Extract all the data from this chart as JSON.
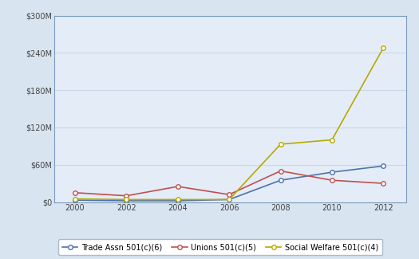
{
  "years": [
    2000,
    2002,
    2004,
    2006,
    2008,
    2010,
    2012
  ],
  "trade_assn": [
    3,
    2,
    2,
    4,
    35,
    48,
    58
  ],
  "unions": [
    15,
    10,
    25,
    12,
    50,
    35,
    30
  ],
  "social_welfare": [
    5,
    4,
    4,
    4,
    93,
    100,
    248
  ],
  "trade_color": "#4e72a8",
  "union_color": "#c0504d",
  "welfare_color": "#b8a800",
  "outer_bg": "#d8e4f0",
  "plot_bg": "#e4edf7",
  "grid_color": "#c8d8e8",
  "border_color": "#7a9bbf",
  "ylim": [
    0,
    300
  ],
  "yticks": [
    0,
    60,
    120,
    180,
    240,
    300
  ],
  "ytick_labels": [
    "$0",
    "$60M",
    "$120M",
    "$180M",
    "$240M",
    "$300M"
  ],
  "legend_labels": [
    "Trade Assn 501(c)(6)",
    "Unions 501(c)(5)",
    "Social Welfare 501(c)(4)"
  ]
}
